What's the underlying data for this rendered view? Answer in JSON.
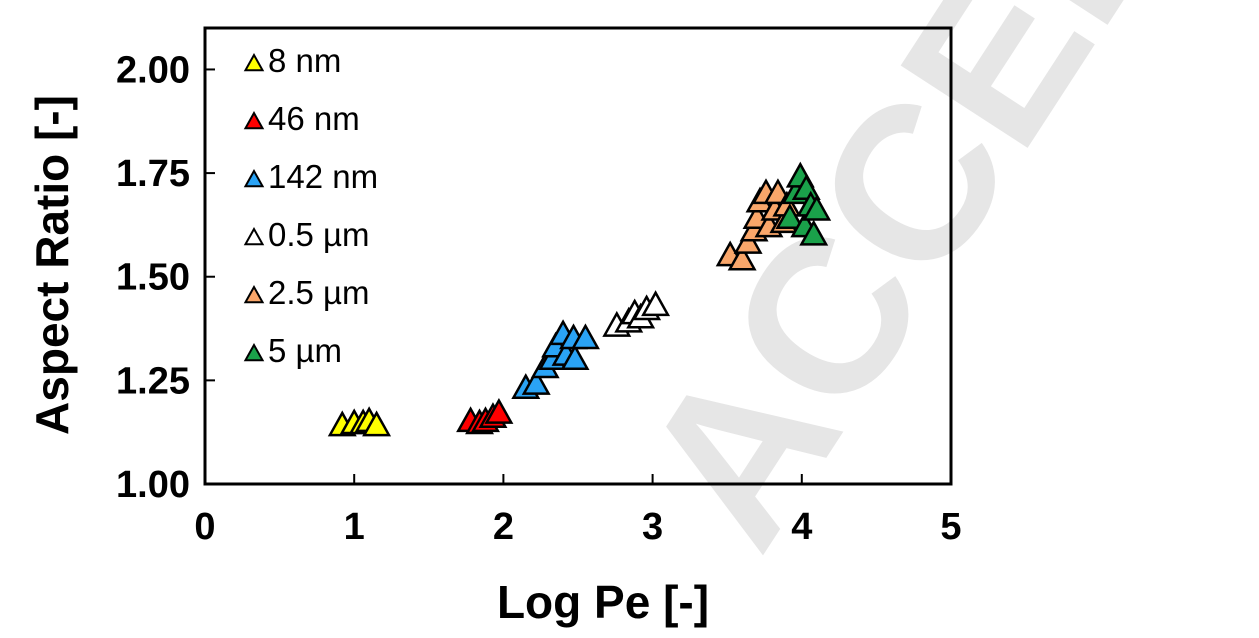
{
  "watermark": {
    "text": "ACCEPTED MANUSCRIPT",
    "color": "#e6e6e6"
  },
  "chart_data": {
    "type": "scatter",
    "xlabel": "Log Pe [-]",
    "ylabel": "Aspect Ratio [-]",
    "xlim": [
      0,
      5
    ],
    "ylim": [
      1.0,
      2.1
    ],
    "x_ticks": [
      "0",
      "1",
      "2",
      "3",
      "4",
      "5"
    ],
    "y_ticks": [
      "1.00",
      "1.25",
      "1.50",
      "1.75",
      "2.00"
    ],
    "legend_position": "top-left",
    "marker": "triangle",
    "series": [
      {
        "name": "8 nm",
        "color": "#ffff00",
        "points": [
          [
            0.92,
            1.14
          ],
          [
            1.0,
            1.145
          ],
          [
            1.06,
            1.145
          ],
          [
            1.1,
            1.15
          ],
          [
            1.15,
            1.14
          ]
        ]
      },
      {
        "name": "46 nm",
        "color": "#ff0000",
        "points": [
          [
            1.78,
            1.15
          ],
          [
            1.84,
            1.145
          ],
          [
            1.88,
            1.15
          ],
          [
            1.93,
            1.16
          ],
          [
            1.97,
            1.17
          ]
        ]
      },
      {
        "name": "142 nm",
        "color": "#2aa3f5",
        "points": [
          [
            2.15,
            1.23
          ],
          [
            2.22,
            1.24
          ],
          [
            2.28,
            1.28
          ],
          [
            2.33,
            1.3
          ],
          [
            2.35,
            1.33
          ],
          [
            2.4,
            1.36
          ],
          [
            2.42,
            1.31
          ],
          [
            2.47,
            1.35
          ],
          [
            2.48,
            1.3
          ],
          [
            2.55,
            1.35
          ]
        ]
      },
      {
        "name": "0.5 µm",
        "color": "#ffffff",
        "points": [
          [
            2.76,
            1.38
          ],
          [
            2.84,
            1.39
          ],
          [
            2.88,
            1.41
          ],
          [
            2.92,
            1.4
          ],
          [
            2.96,
            1.42
          ],
          [
            3.02,
            1.43
          ]
        ]
      },
      {
        "name": "2.5 µm",
        "color": "#f9a66a",
        "points": [
          [
            3.52,
            1.55
          ],
          [
            3.6,
            1.54
          ],
          [
            3.64,
            1.58
          ],
          [
            3.68,
            1.61
          ],
          [
            3.7,
            1.64
          ],
          [
            3.72,
            1.68
          ],
          [
            3.76,
            1.7
          ],
          [
            3.78,
            1.62
          ],
          [
            3.82,
            1.66
          ],
          [
            3.84,
            1.7
          ],
          [
            3.88,
            1.63
          ],
          [
            3.9,
            1.67
          ]
        ]
      },
      {
        "name": "5 µm",
        "color": "#1aa14a",
        "points": [
          [
            3.92,
            1.64
          ],
          [
            3.96,
            1.7
          ],
          [
            3.99,
            1.74
          ],
          [
            4.02,
            1.62
          ],
          [
            4.03,
            1.71
          ],
          [
            4.06,
            1.67
          ],
          [
            4.08,
            1.6
          ],
          [
            4.1,
            1.66
          ]
        ]
      }
    ]
  }
}
